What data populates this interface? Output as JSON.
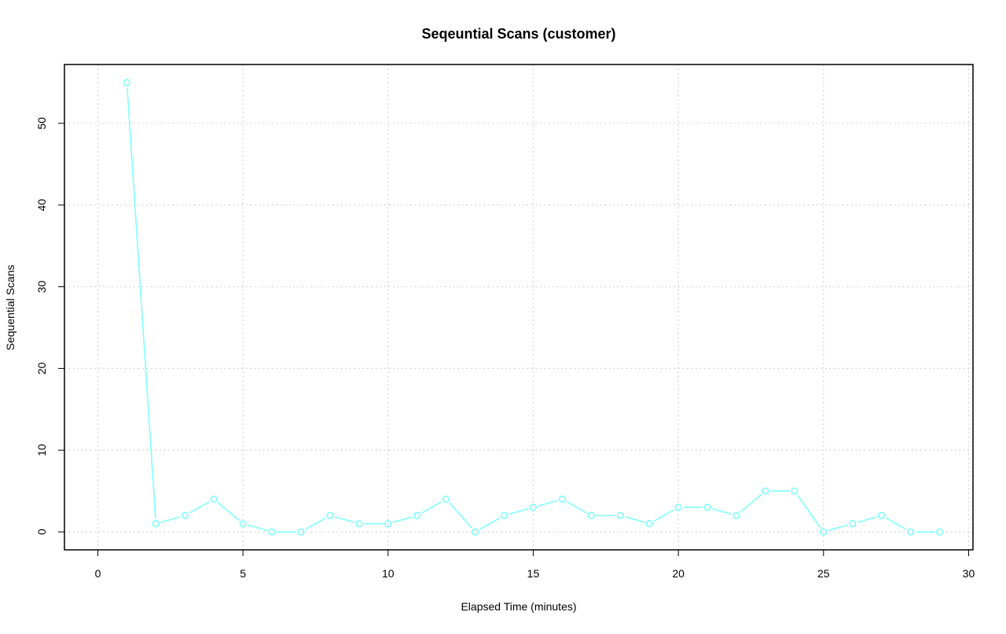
{
  "chart_data": {
    "type": "line",
    "title": "Seqeuntial Scans (customer)",
    "xlabel": "Elapsed Time (minutes)",
    "ylabel": "Sequential Scans",
    "xlim": [
      -1.15,
      30.15
    ],
    "ylim": [
      -2.2,
      57.2
    ],
    "xticks": [
      0,
      5,
      10,
      15,
      20,
      25,
      30
    ],
    "yticks": [
      0,
      10,
      20,
      30,
      40,
      50
    ],
    "grid": true,
    "series": [
      {
        "color": "#7fffff",
        "marker": "open-circle",
        "x": [
          1,
          2,
          3,
          4,
          5,
          6,
          7,
          8,
          9,
          10,
          11,
          12,
          13,
          14,
          15,
          16,
          17,
          18,
          19,
          20,
          21,
          22,
          23,
          24,
          25,
          26,
          27,
          28,
          29
        ],
        "y": [
          55,
          1,
          2,
          4,
          1,
          0,
          0,
          2,
          1,
          1,
          2,
          4,
          0,
          2,
          3,
          4,
          2,
          2,
          1,
          3,
          3,
          2,
          5,
          5,
          0,
          1,
          2,
          0,
          0
        ]
      }
    ]
  }
}
